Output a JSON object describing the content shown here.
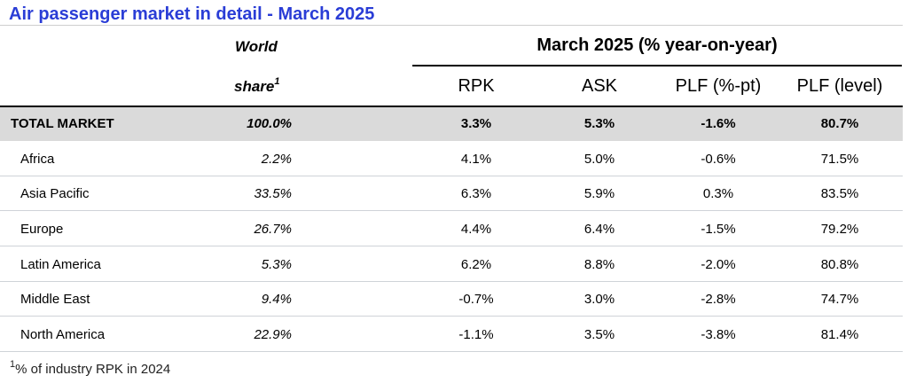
{
  "title": "Air passenger market in detail - March 2025",
  "header": {
    "world": "World",
    "share": "share",
    "share_sup": "1",
    "group_title": "March 2025 (% year-on-year)",
    "columns": [
      "RPK",
      "ASK",
      "PLF (%-pt)",
      "PLF (level)"
    ]
  },
  "rows": [
    {
      "region": "TOTAL MARKET",
      "share": "100.0%",
      "rpk": "3.3%",
      "ask": "5.3%",
      "plf_pt": "-1.6%",
      "plf_level": "80.7%"
    },
    {
      "region": "Africa",
      "share": "2.2%",
      "rpk": "4.1%",
      "ask": "5.0%",
      "plf_pt": "-0.6%",
      "plf_level": "71.5%"
    },
    {
      "region": "Asia Pacific",
      "share": "33.5%",
      "rpk": "6.3%",
      "ask": "5.9%",
      "plf_pt": "0.3%",
      "plf_level": "83.5%"
    },
    {
      "region": "Europe",
      "share": "26.7%",
      "rpk": "4.4%",
      "ask": "6.4%",
      "plf_pt": "-1.5%",
      "plf_level": "79.2%"
    },
    {
      "region": "Latin America",
      "share": "5.3%",
      "rpk": "6.2%",
      "ask": "8.8%",
      "plf_pt": "-2.0%",
      "plf_level": "80.8%"
    },
    {
      "region": "Middle East",
      "share": "9.4%",
      "rpk": "-0.7%",
      "ask": "3.0%",
      "plf_pt": "-2.8%",
      "plf_level": "74.7%"
    },
    {
      "region": "North America",
      "share": "22.9%",
      "rpk": "-1.1%",
      "ask": "3.5%",
      "plf_pt": "-3.8%",
      "plf_level": "81.4%"
    }
  ],
  "footnote": {
    "sup": "1",
    "text": "% of industry RPK in 2024"
  },
  "colors": {
    "title": "#2a3dd6",
    "total_row_bg": "#dadada",
    "row_separator": "#cfd3d8"
  }
}
